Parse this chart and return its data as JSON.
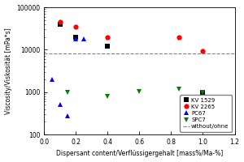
{
  "xlabel": "Dispersant content/Verflüssigergehalt [mass%/Ma-%]",
  "ylabel": "Viscosity/Viskosität [mPa*s]",
  "xlim": [
    0.0,
    1.2
  ],
  "ylim": [
    100,
    100000
  ],
  "dashed_line_y": 8000,
  "series": {
    "KV 1529": {
      "color": "black",
      "marker": "s",
      "x": [
        0.1,
        0.2,
        0.4,
        1.0
      ],
      "y": [
        40000,
        20000,
        12000,
        1000
      ]
    },
    "KV 2265": {
      "color": "red",
      "marker": "o",
      "x": [
        0.1,
        0.2,
        0.4,
        0.85,
        1.0
      ],
      "y": [
        45000,
        35000,
        20000,
        20000,
        9500
      ]
    },
    "PC67": {
      "color": "blue",
      "marker": "^",
      "x": [
        0.05,
        0.1,
        0.15,
        0.2,
        0.25
      ],
      "y": [
        2000,
        500,
        280,
        18000,
        18000
      ]
    },
    "SPC7": {
      "color": "green",
      "marker": "v",
      "x": [
        0.15,
        0.4,
        0.6,
        0.85,
        1.0
      ],
      "y": [
        1000,
        800,
        1050,
        1200,
        1000
      ]
    }
  },
  "legend_loc": "lower right",
  "dashed_label": "without/ohne",
  "background_color": "#ffffff",
  "label_fontsize": 5.5,
  "tick_fontsize": 5.5,
  "legend_fontsize": 5.0,
  "marker_size": 4.5
}
